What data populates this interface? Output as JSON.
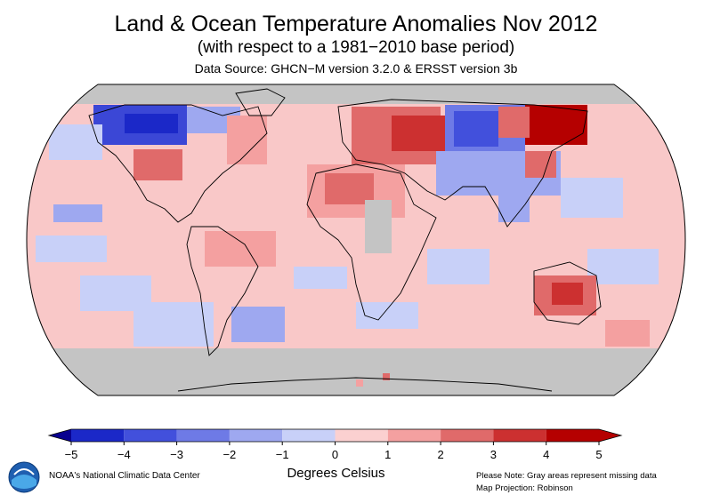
{
  "header": {
    "title": "Land & Ocean Temperature Anomalies Nov 2012",
    "subtitle": "(with respect to a 1981−2010 base period)",
    "source": "Data Source: GHCN−M version 3.2.0 & ERSST version 3b"
  },
  "map": {
    "projection": "Robinson",
    "ocean_default_color": "#f9c8c8",
    "missing_color": "#c4c4c4"
  },
  "colorbar": {
    "ticks": [
      "−5",
      "−4",
      "−3",
      "−2",
      "−1",
      "0",
      "1",
      "2",
      "3",
      "4",
      "5"
    ],
    "min": -5,
    "max": 5,
    "colors": [
      "#08008f",
      "#1b28c8",
      "#4250dc",
      "#6e7ae6",
      "#9ea8f0",
      "#c8d0f8",
      "#fbd0d0",
      "#f4a0a0",
      "#e06a6a",
      "#cc3030",
      "#b50000"
    ],
    "units_label": "Degrees Celsius"
  },
  "footer": {
    "credit": "NOAA's National Climatic Data Center",
    "note_missing": "Please Note: Gray areas represent missing data",
    "note_projection": "Map Projection: Robinson",
    "logo_label": "NOAA"
  }
}
